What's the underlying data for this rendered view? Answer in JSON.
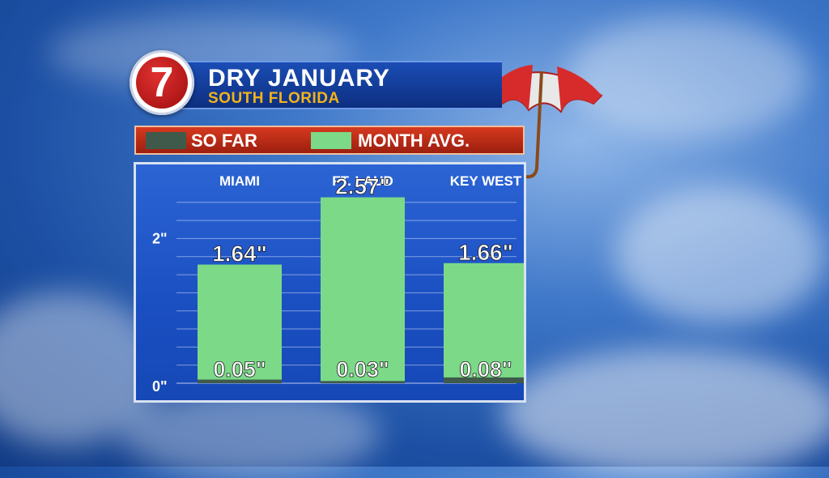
{
  "header": {
    "logo_text": "7",
    "title": "DRY JANUARY",
    "subtitle": "SOUTH FLORIDA"
  },
  "legend": {
    "items": [
      {
        "label": "SO FAR",
        "color": "#3f5a4a"
      },
      {
        "label": "MONTH AVG.",
        "color": "#7bd987"
      }
    ]
  },
  "chart_data": {
    "type": "bar",
    "categories": [
      "MIAMI",
      "FT. LAUD",
      "KEY WEST"
    ],
    "series": [
      {
        "name": "SO FAR",
        "values": [
          0.05,
          0.03,
          0.08
        ],
        "labels": [
          "0.05\"",
          "0.03\"",
          "0.08\""
        ]
      },
      {
        "name": "MONTH AVG.",
        "values": [
          1.64,
          2.57,
          1.66
        ],
        "labels": [
          "1.64\"",
          "2.57\"",
          "1.66\""
        ]
      }
    ],
    "yticks": [
      {
        "value": 0,
        "label": "0\""
      },
      {
        "value": 2,
        "label": "2\""
      }
    ],
    "ylim": [
      0,
      2.8
    ],
    "grid": true
  }
}
